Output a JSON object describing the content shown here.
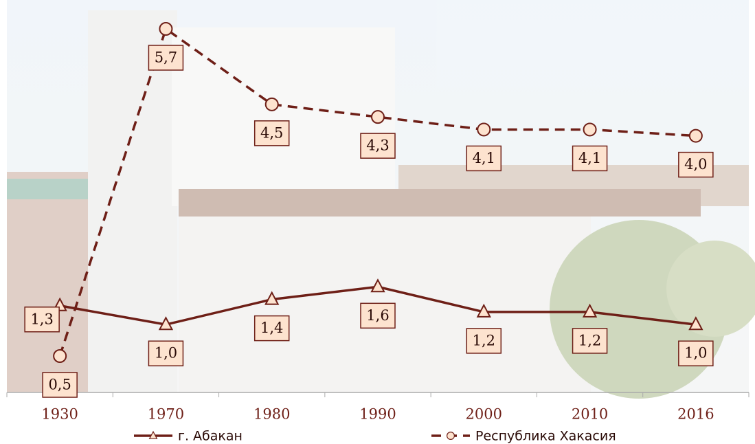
{
  "chart_data": {
    "type": "line",
    "categories": [
      "1930",
      "1970",
      "1980",
      "1990",
      "2000",
      "2010",
      "2016"
    ],
    "series": [
      {
        "name": "г. Абакан",
        "color": "#6e1f17",
        "marker": "triangle",
        "dash": false,
        "values": [
          1.3,
          1.0,
          1.4,
          1.6,
          1.2,
          1.2,
          1.0
        ],
        "value_labels": [
          "1,3",
          "1,0",
          "1,4",
          "1,6",
          "1,2",
          "1,2",
          "1,0"
        ]
      },
      {
        "name": "Республика Хакасия",
        "color": "#6e1f17",
        "marker": "circle",
        "dash": true,
        "values": [
          0.5,
          5.7,
          4.5,
          4.3,
          4.1,
          4.1,
          4.0
        ],
        "value_labels": [
          "0,5",
          "5,7",
          "4,5",
          "4,3",
          "4,1",
          "4,1",
          "4,0"
        ]
      }
    ],
    "legend": "bottom"
  }
}
